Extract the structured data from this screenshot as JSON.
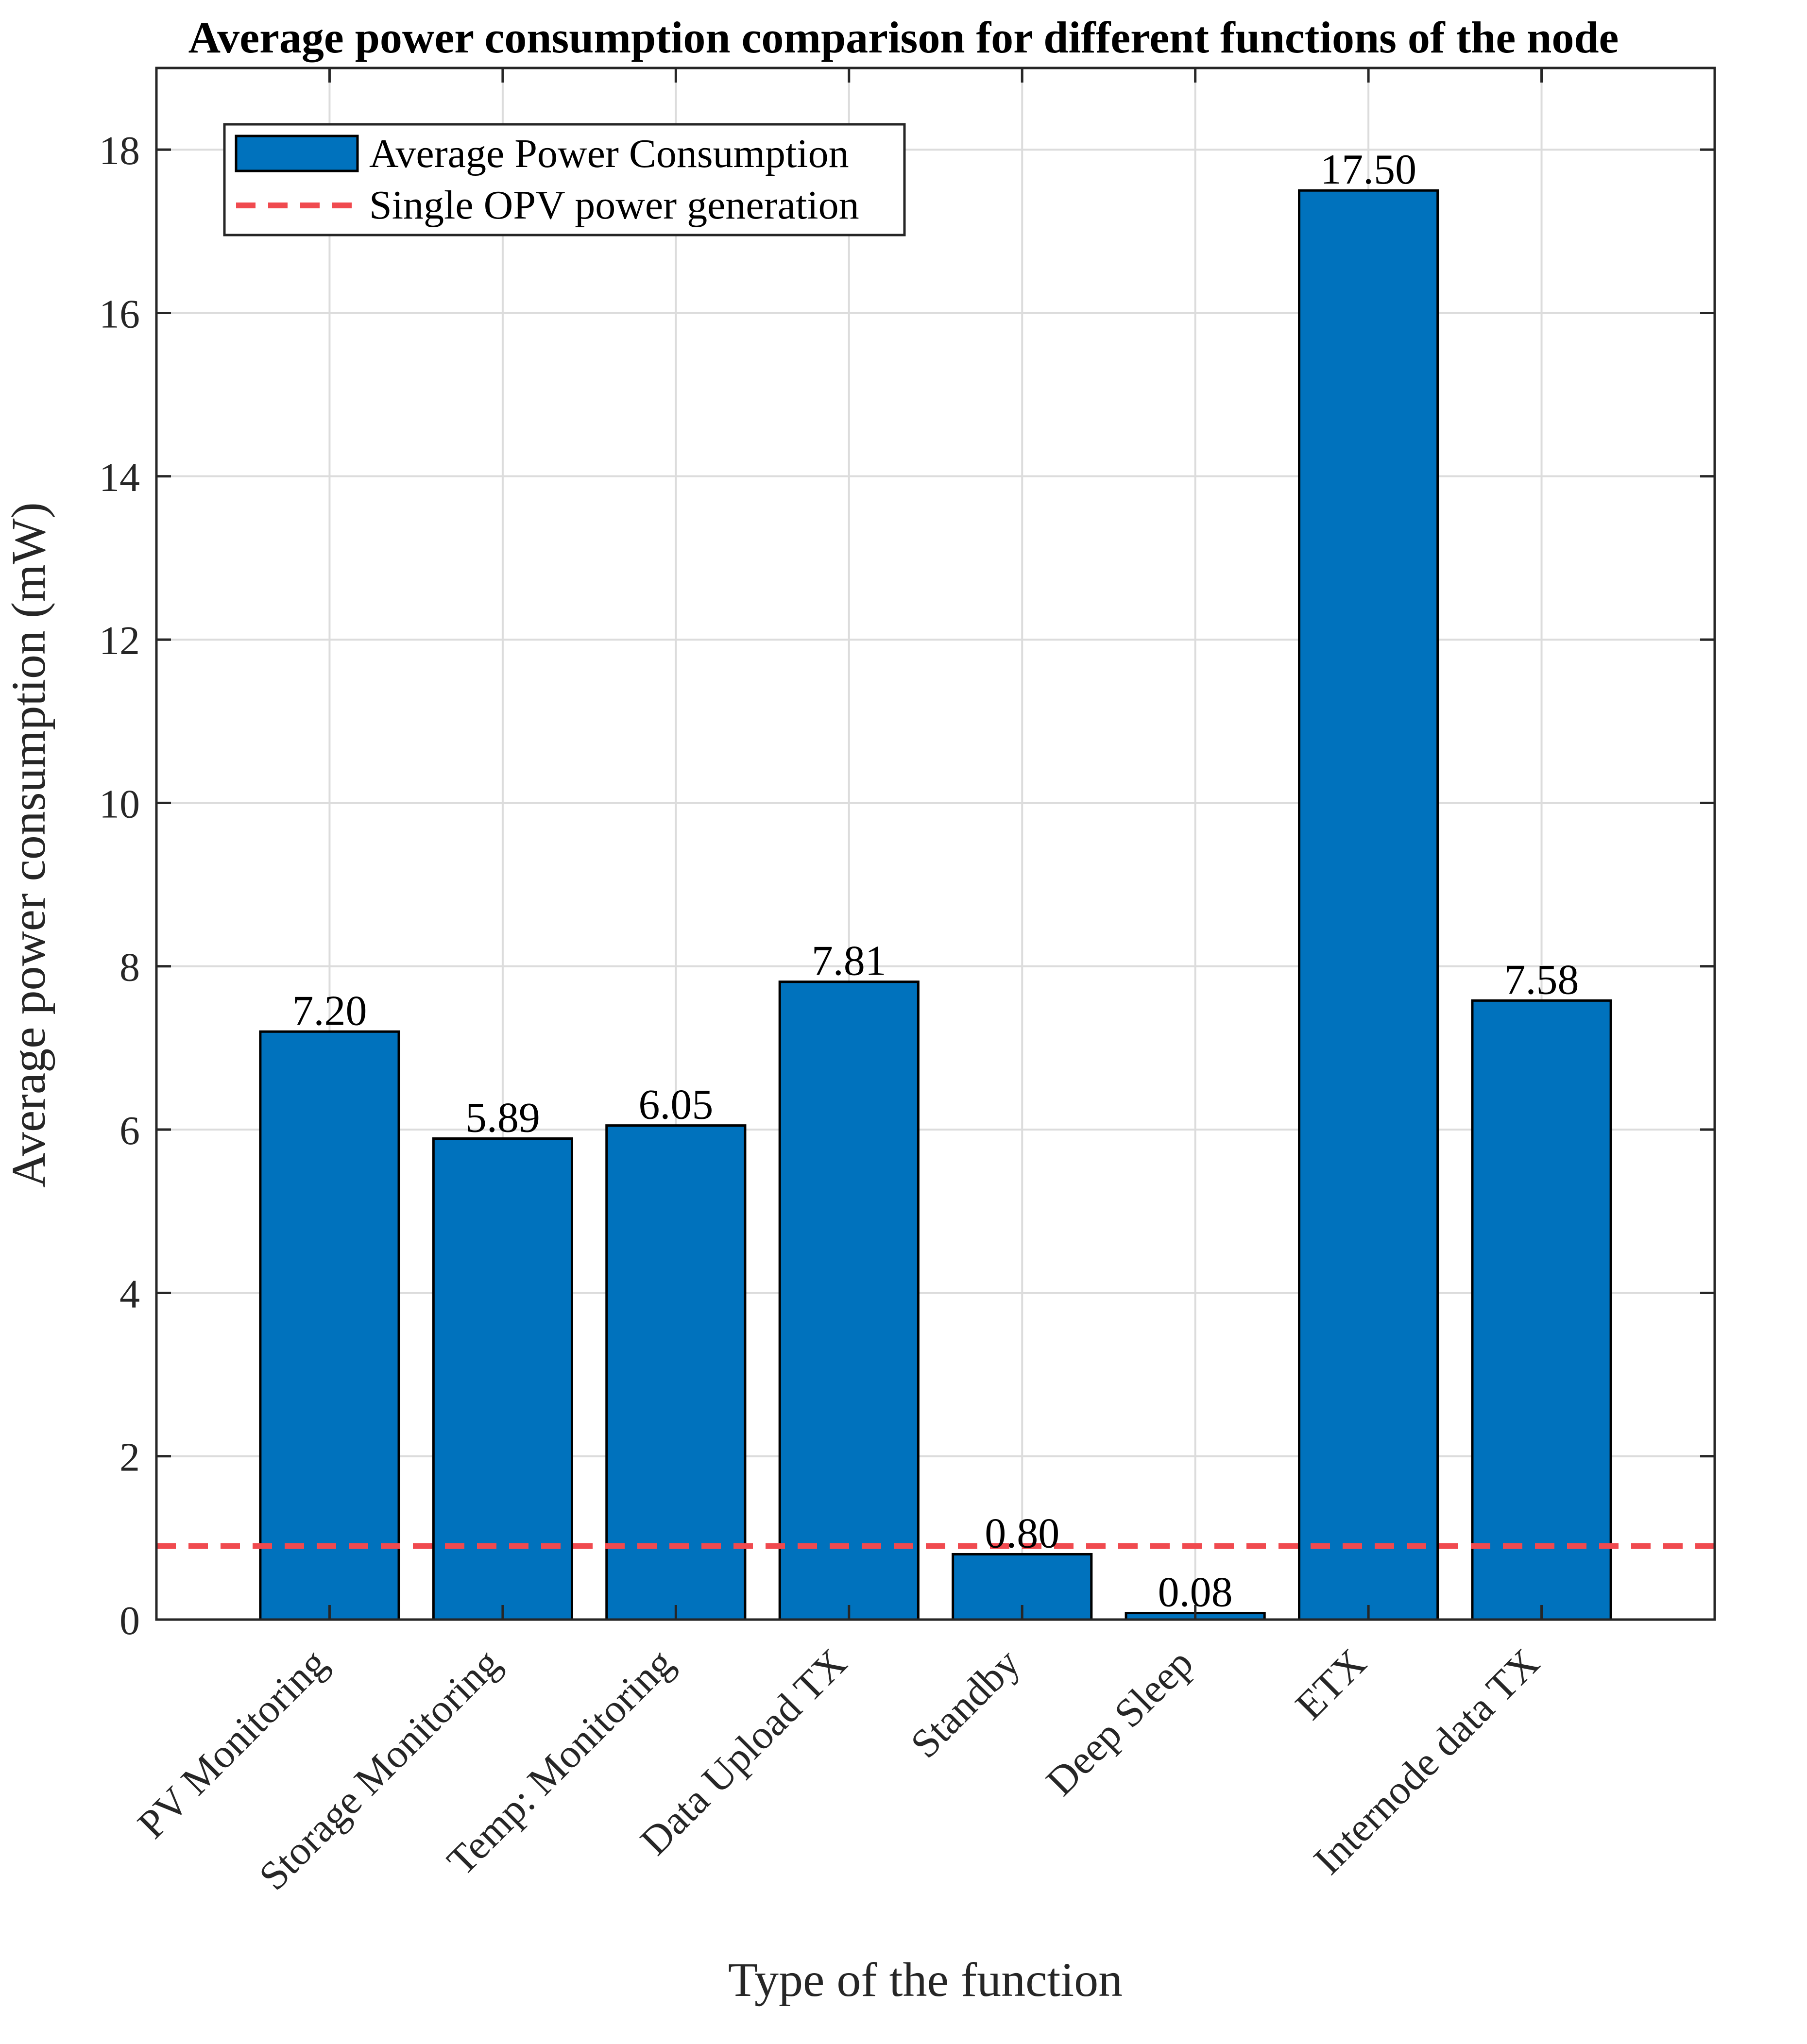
{
  "chart_data": {
    "type": "bar",
    "title": "Average power consumption comparison for different functions of the node",
    "xlabel": "Type of the function",
    "ylabel": "Average power consumption (mW)",
    "ylim": [
      0,
      19
    ],
    "yticks": [
      0,
      2,
      4,
      6,
      8,
      10,
      12,
      14,
      16,
      18
    ],
    "ytick_labels": [
      "0",
      "2",
      "4",
      "6",
      "8",
      "10",
      "12",
      "14",
      "16",
      "18"
    ],
    "grid": true,
    "legend_position": "top-left",
    "categories": [
      "PV Monitoring",
      "Storage Monitoring",
      "Temp: Monitoring",
      "Data Upload TX",
      "Standby",
      "Deep Sleep",
      "ETX",
      "Internode data TX"
    ],
    "series": [
      {
        "name": "Average Power Consumption",
        "color": "#0072BD",
        "values": [
          7.2,
          5.89,
          6.05,
          7.81,
          0.8,
          0.08,
          17.5,
          7.58
        ],
        "value_labels": [
          "7.20",
          "5.89",
          "6.05",
          "7.81",
          "0.80",
          "0.08",
          "17.50",
          "7.58"
        ]
      }
    ],
    "reference_lines": [
      {
        "name": "Single OPV power generation",
        "y": 0.9,
        "color": "#F04A4F",
        "style": "dashed"
      }
    ]
  }
}
